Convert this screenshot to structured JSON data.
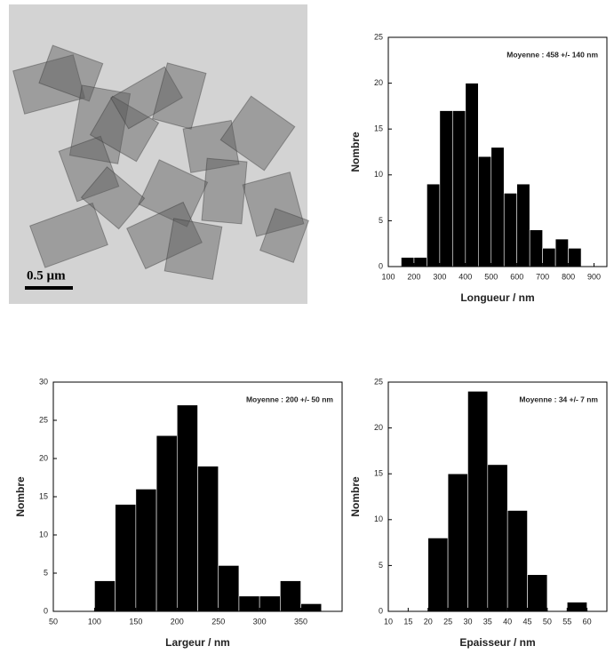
{
  "image": {
    "scale_bar": "0.5 µm"
  },
  "chart_data": [
    {
      "type": "histogram",
      "xlabel": "Longueur / nm",
      "ylabel": "Nombre",
      "annotation": "Moyenne : 458 +/- 140 nm",
      "color": "#000000",
      "bins": [
        150,
        200,
        250,
        300,
        350,
        400,
        450,
        500,
        550,
        600,
        650,
        700,
        750,
        800,
        850
      ],
      "counts": [
        1,
        1,
        9,
        17,
        17,
        20,
        12,
        13,
        8,
        9,
        4,
        2,
        3,
        2
      ],
      "xlim": [
        100,
        950
      ],
      "xticks": [
        100,
        200,
        300,
        400,
        500,
        600,
        700,
        800,
        900
      ],
      "ylim": [
        0,
        25
      ],
      "yticks": [
        0,
        5,
        10,
        15,
        20,
        25
      ]
    },
    {
      "type": "histogram",
      "xlabel": "Largeur / nm",
      "ylabel": "Nombre",
      "annotation": "Moyenne : 200 +/- 50 nm",
      "color": "#000000",
      "bins": [
        100,
        125,
        150,
        175,
        200,
        225,
        250,
        275,
        300,
        325,
        350,
        375
      ],
      "counts": [
        4,
        14,
        16,
        23,
        27,
        19,
        6,
        2,
        2,
        4,
        1
      ],
      "xlim": [
        50,
        400
      ],
      "xticks": [
        50,
        100,
        150,
        200,
        250,
        300,
        350
      ],
      "ylim": [
        0,
        30
      ],
      "yticks": [
        0,
        5,
        10,
        15,
        20,
        25,
        30
      ]
    },
    {
      "type": "histogram",
      "xlabel": "Epaisseur / nm",
      "ylabel": "Nombre",
      "annotation": "Moyenne : 34 +/- 7 nm",
      "color": "#000000",
      "bins": [
        20,
        25,
        30,
        35,
        40,
        45,
        50,
        55,
        60
      ],
      "counts": [
        8,
        15,
        24,
        16,
        11,
        4,
        0,
        1
      ],
      "xlim": [
        10,
        65
      ],
      "xticks": [
        10,
        15,
        20,
        25,
        30,
        35,
        40,
        45,
        50,
        55,
        60
      ],
      "ylim": [
        0,
        25
      ],
      "yticks": [
        0,
        5,
        10,
        15,
        20,
        25
      ]
    }
  ]
}
